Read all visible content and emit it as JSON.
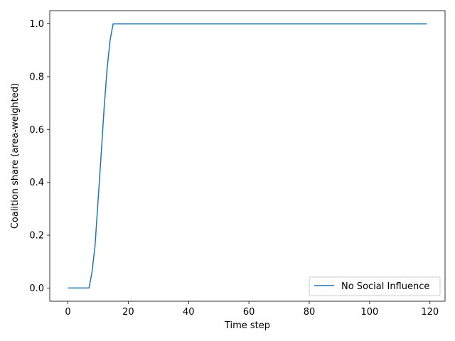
{
  "chart_data": {
    "type": "line",
    "title": "",
    "xlabel": "Time step",
    "ylabel": "Coalition share (area-weighted)",
    "xlim": [
      -6,
      125
    ],
    "ylim": [
      -0.05,
      1.05
    ],
    "xticks": [
      0,
      20,
      40,
      60,
      80,
      100,
      120
    ],
    "yticks": [
      0.0,
      0.2,
      0.4,
      0.6,
      0.8,
      1.0
    ],
    "xtick_labels": [
      "0",
      "20",
      "40",
      "60",
      "80",
      "100",
      "120"
    ],
    "ytick_labels": [
      "0.0",
      "0.2",
      "0.4",
      "0.6",
      "0.8",
      "1.0"
    ],
    "grid": false,
    "legend_position": "lower-right",
    "series": [
      {
        "name": "No Social Influence",
        "color": "#1f77b4",
        "x": [
          0,
          1,
          2,
          3,
          4,
          5,
          6,
          7,
          8,
          9,
          10,
          11,
          12,
          13,
          14,
          15,
          16,
          20,
          40,
          60,
          80,
          100,
          119
        ],
        "y": [
          0.0,
          0.0,
          0.0,
          0.0,
          0.0,
          0.0,
          0.0,
          0.0,
          0.06,
          0.16,
          0.33,
          0.5,
          0.68,
          0.83,
          0.94,
          1.0,
          1.0,
          1.0,
          1.0,
          1.0,
          1.0,
          1.0,
          1.0
        ]
      }
    ]
  }
}
